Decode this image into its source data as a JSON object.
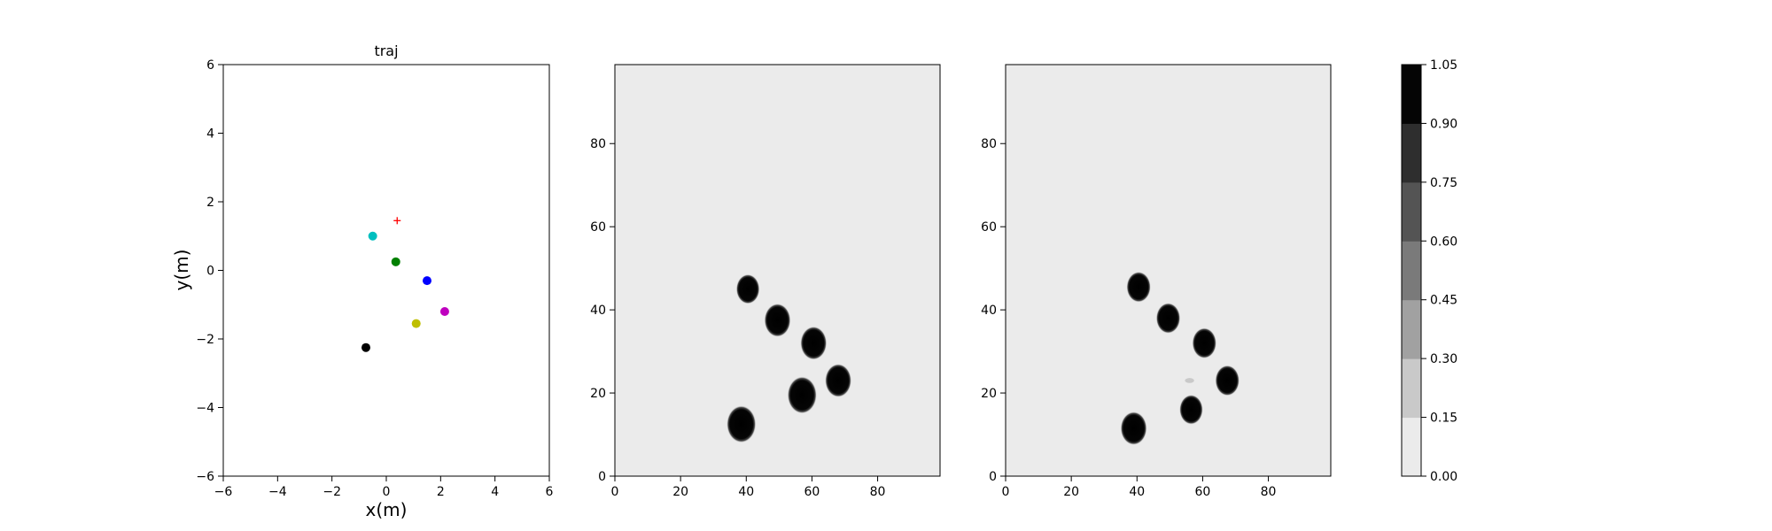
{
  "chart_data": [
    {
      "type": "scatter",
      "title": "traj",
      "xlabel": "x(m)",
      "ylabel": "y(m)",
      "xlim": [
        -6,
        6
      ],
      "ylim": [
        -6,
        6
      ],
      "xticks": [
        "−6",
        "−4",
        "−2",
        "0",
        "2",
        "4",
        "6"
      ],
      "yticks": [
        "−6",
        "−4",
        "−2",
        "0",
        "2",
        "4",
        "6"
      ],
      "grid": false,
      "points": [
        {
          "x": -0.5,
          "y": 1.0,
          "color": "#00bfbf"
        },
        {
          "x": 0.35,
          "y": 0.25,
          "color": "#008000"
        },
        {
          "x": 1.5,
          "y": -0.3,
          "color": "#0000ff"
        },
        {
          "x": 2.15,
          "y": -1.2,
          "color": "#bf00bf"
        },
        {
          "x": 1.1,
          "y": -1.55,
          "color": "#bfbf00"
        },
        {
          "x": -0.75,
          "y": -2.25,
          "color": "#000000"
        }
      ],
      "marker": {
        "x": 0.4,
        "y": 1.45,
        "color": "#ff0000",
        "symbol": "+"
      }
    },
    {
      "type": "heatmap",
      "xlim": [
        0,
        99
      ],
      "ylim": [
        0,
        99
      ],
      "xticks": [
        "0",
        "20",
        "40",
        "60",
        "80"
      ],
      "yticks": [
        "0",
        "20",
        "40",
        "60",
        "80"
      ],
      "background_color": "#ebebeb",
      "blobs": [
        {
          "x": 40.5,
          "y": 45,
          "r": 3.2
        },
        {
          "x": 49.5,
          "y": 37.5,
          "r": 3.6
        },
        {
          "x": 60.5,
          "y": 32,
          "r": 3.6
        },
        {
          "x": 68,
          "y": 23,
          "r": 3.6
        },
        {
          "x": 57,
          "y": 19.5,
          "r": 4.0
        },
        {
          "x": 38.5,
          "y": 12.5,
          "r": 4.0
        }
      ]
    },
    {
      "type": "heatmap",
      "xlim": [
        0,
        99
      ],
      "ylim": [
        0,
        99
      ],
      "xticks": [
        "0",
        "20",
        "40",
        "60",
        "80"
      ],
      "yticks": [
        "0",
        "20",
        "40",
        "60",
        "80"
      ],
      "background_color": "#ebebeb",
      "blobs": [
        {
          "x": 40.5,
          "y": 45.5,
          "r": 3.3
        },
        {
          "x": 49.5,
          "y": 38,
          "r": 3.3
        },
        {
          "x": 60.5,
          "y": 32,
          "r": 3.3
        },
        {
          "x": 67.5,
          "y": 23,
          "r": 3.3
        },
        {
          "x": 56.5,
          "y": 16,
          "r": 3.2
        },
        {
          "x": 39,
          "y": 11.5,
          "r": 3.6
        }
      ],
      "faint_spot": {
        "x": 56,
        "y": 23,
        "r": 1.0
      }
    }
  ],
  "colorbar": {
    "ticks": [
      "0.00",
      "0.15",
      "0.30",
      "0.45",
      "0.60",
      "0.75",
      "0.90",
      "1.05"
    ],
    "levels": [
      "#ebebeb",
      "#c9c9c9",
      "#a1a1a1",
      "#7a7a7a",
      "#545454",
      "#2e2e2e",
      "#050505"
    ]
  }
}
